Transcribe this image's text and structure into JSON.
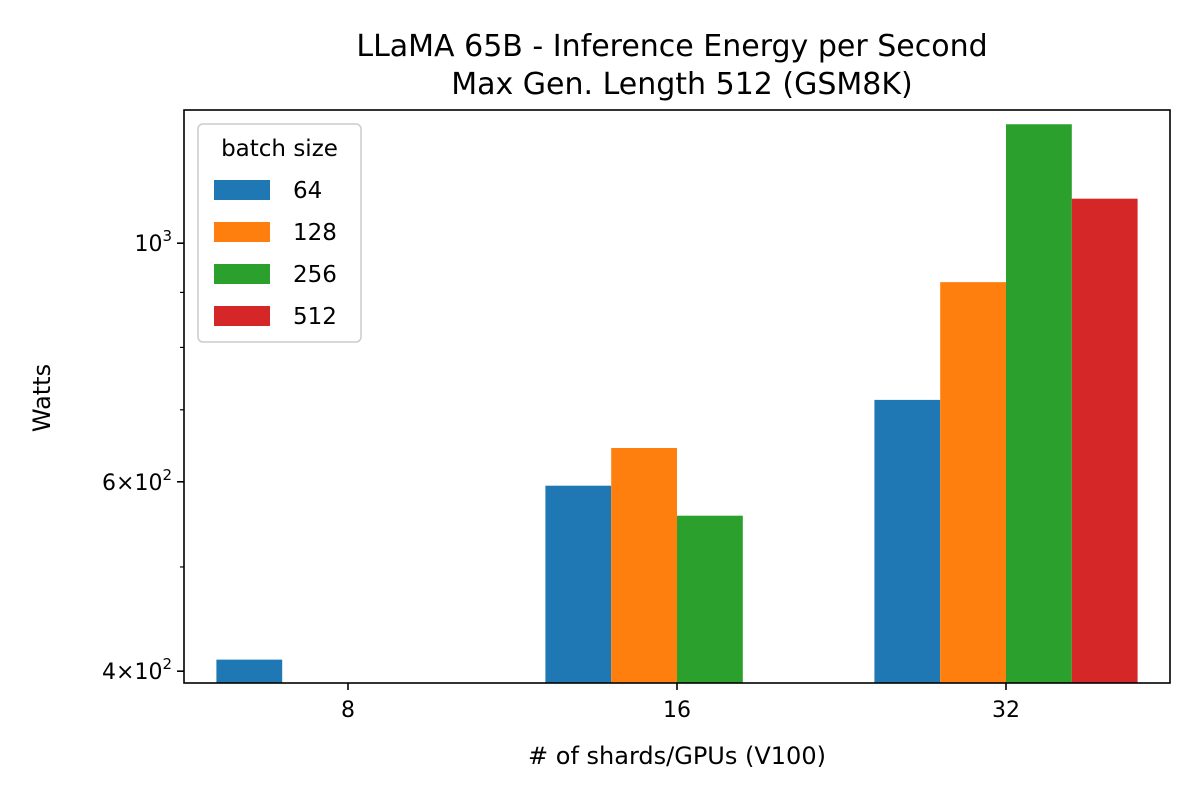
{
  "chart_data": {
    "type": "bar",
    "title": "LLaMA 65B - Inference Energy per Second",
    "subtitle": "Max Gen. Length 512 (GSM8K)",
    "xlabel": "# of shards/GPUs (V100)",
    "ylabel": "Watts",
    "yscale": "log",
    "ylim": [
      390,
      1330
    ],
    "categories": [
      "8",
      "16",
      "32"
    ],
    "y_ticks": [
      {
        "value": 400,
        "base": "4",
        "exp": "2"
      },
      {
        "value": 600,
        "base": "6",
        "exp": "2"
      },
      {
        "value": 1000,
        "base": "10",
        "exp": "3"
      }
    ],
    "y_minor_ticks": [
      500,
      700,
      800,
      900
    ],
    "legend": {
      "title": "batch size",
      "position": "top-left"
    },
    "series": [
      {
        "name": "64",
        "color": "#1f77b4",
        "values": [
          410,
          595,
          715
        ]
      },
      {
        "name": "128",
        "color": "#ff7f0e",
        "values": [
          null,
          645,
          920
        ]
      },
      {
        "name": "256",
        "color": "#2ca02c",
        "values": [
          null,
          558,
          1290
        ]
      },
      {
        "name": "512",
        "color": "#d62728",
        "values": [
          null,
          null,
          1100
        ]
      }
    ]
  }
}
